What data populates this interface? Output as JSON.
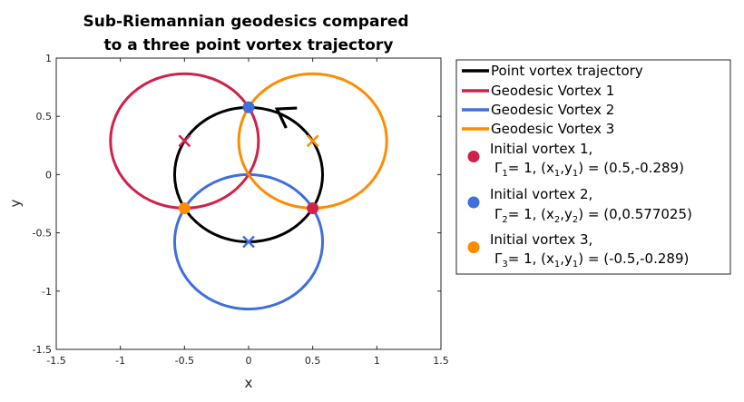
{
  "chart_data": {
    "type": "line",
    "title_lines": [
      "Sub-Riemannian geodesics compared",
      " to a three point vortex trajectory"
    ],
    "xlabel": "x",
    "ylabel": "y",
    "xlim": [
      -1.5,
      1.5
    ],
    "ylim": [
      -1.5,
      1
    ],
    "x_ticks": [
      -1.5,
      -1,
      -0.5,
      0,
      0.5,
      1,
      1.5
    ],
    "x_tick_labels": [
      "-1.5",
      "-1",
      "-0.5",
      "0",
      "0.5",
      "1",
      "1.5"
    ],
    "y_ticks": [
      -1.5,
      -1,
      -0.5,
      0,
      0.5,
      1
    ],
    "y_tick_labels": [
      "-1.5",
      "-1",
      "-0.5",
      "0",
      "0.5",
      "1"
    ],
    "grid": false,
    "legend_position": "outside-right",
    "series": [
      {
        "name": "Point vortex trajectory",
        "color": "#000000",
        "shape": "circle",
        "center": [
          0,
          0
        ],
        "radius": 0.577,
        "arrow_at": [
          0.25,
          0.54
        ]
      },
      {
        "name": "Geodesic Vortex 1",
        "color": "#d0214a",
        "shape": "circle",
        "center": [
          -0.5,
          0.289
        ],
        "radius": 0.577
      },
      {
        "name": "Geodesic Vortex 2",
        "color": "#3f6fdc",
        "shape": "circle",
        "center": [
          0,
          -0.577
        ],
        "radius": 0.577
      },
      {
        "name": "Geodesic Vortex 3",
        "color": "#ff8c00",
        "shape": "circle",
        "center": [
          0.5,
          0.289
        ],
        "radius": 0.577
      }
    ],
    "initial_points": [
      {
        "name": "Initial vortex 1",
        "color": "#d0214a",
        "x": 0.5,
        "y": -0.289,
        "sub": "1",
        "xsub": "1",
        "ysub": "1",
        "gamma": "1",
        "coords": "(0.5,-0.289)"
      },
      {
        "name": "Initial vortex 2",
        "color": "#3f6fdc",
        "x": 0,
        "y": 0.577025,
        "sub": "2",
        "xsub": "2",
        "ysub": "2",
        "gamma": "1",
        "coords": "(0,0.577025)"
      },
      {
        "name": "Initial vortex 3",
        "color": "#ff8c00",
        "x": -0.5,
        "y": -0.289,
        "sub": "3",
        "xsub": "1",
        "ysub": "1",
        "gamma": "1",
        "coords": "(-0.5,-0.289)"
      }
    ],
    "cross_markers": [
      {
        "x": -0.5,
        "y": 0.289,
        "color": "#d0214a"
      },
      {
        "x": 0,
        "y": -0.577,
        "color": "#3f6fdc"
      },
      {
        "x": 0.5,
        "y": 0.289,
        "color": "#ff8c00"
      }
    ]
  }
}
